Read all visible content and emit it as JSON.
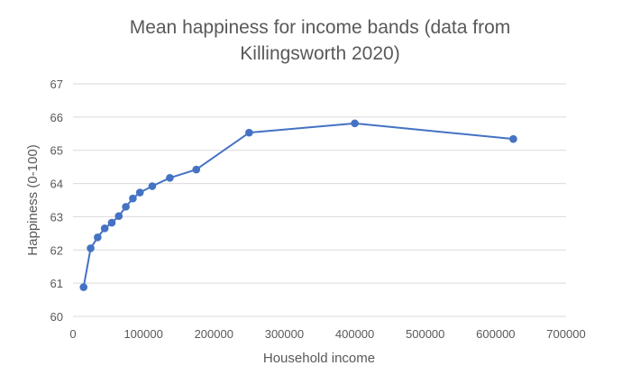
{
  "chart_data": {
    "type": "scatter",
    "title_lines": [
      "Mean happiness for income bands (data from",
      "Killingsworth 2020)"
    ],
    "xlabel": "Household income",
    "ylabel": "Happiness (0-100)",
    "xlim": [
      0,
      700000
    ],
    "ylim": [
      60,
      67
    ],
    "x_ticks": [
      0,
      100000,
      200000,
      300000,
      400000,
      500000,
      600000,
      700000
    ],
    "y_ticks": [
      60,
      61,
      62,
      63,
      64,
      65,
      66,
      67
    ],
    "grid": true,
    "legend": false,
    "connected": true,
    "series": [
      {
        "color": "#4472c4",
        "points": [
          {
            "x": 15000,
            "y": 60.88
          },
          {
            "x": 25000,
            "y": 62.05
          },
          {
            "x": 35000,
            "y": 62.38
          },
          {
            "x": 45000,
            "y": 62.65
          },
          {
            "x": 55000,
            "y": 62.82
          },
          {
            "x": 65000,
            "y": 63.02
          },
          {
            "x": 75000,
            "y": 63.3
          },
          {
            "x": 85000,
            "y": 63.55
          },
          {
            "x": 95000,
            "y": 63.73
          },
          {
            "x": 112500,
            "y": 63.92
          },
          {
            "x": 137500,
            "y": 64.17
          },
          {
            "x": 175000,
            "y": 64.42
          },
          {
            "x": 250000,
            "y": 65.53
          },
          {
            "x": 400000,
            "y": 65.81
          },
          {
            "x": 625000,
            "y": 65.34
          }
        ]
      }
    ]
  },
  "colors": {
    "grid": "#d9d9d9",
    "axis_text": "#595959"
  }
}
